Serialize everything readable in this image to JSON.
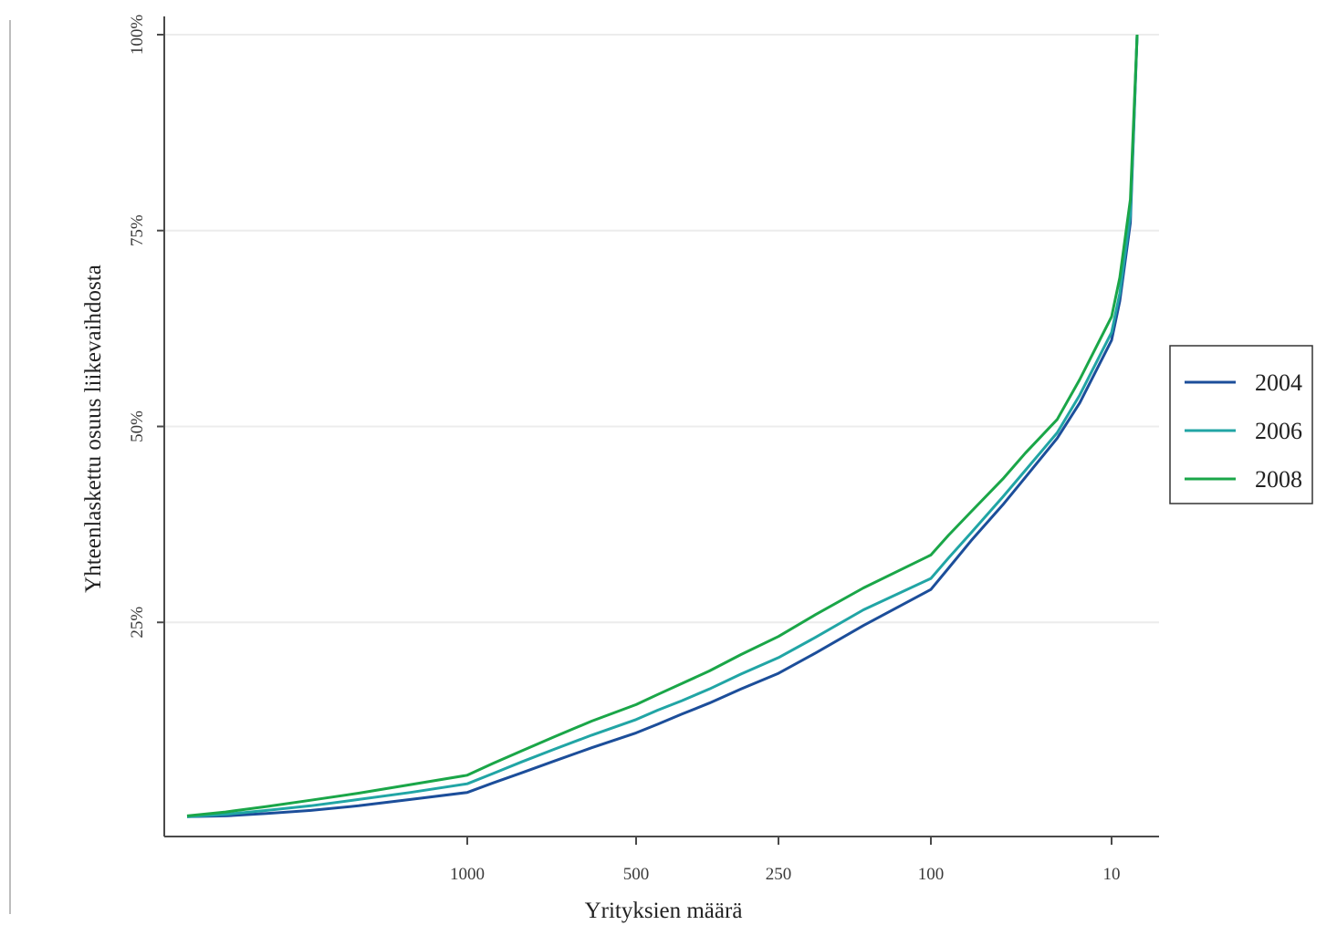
{
  "chart_data": {
    "type": "line",
    "xlabel": "Yrityksien määrä",
    "ylabel": "Yhteenlaskettu osuus liikevaihdosta",
    "x_tick_labels": [
      "1000",
      "500",
      "250",
      "100",
      "10"
    ],
    "y_tick_labels": [
      "25%",
      "50%",
      "75%",
      "100%"
    ],
    "y_ticks": [
      25,
      50,
      75,
      100
    ],
    "ylim": [
      0,
      100
    ],
    "x_axis": "number of firms, decreasing to the right",
    "grid": "horizontal",
    "legend_position": "right",
    "x": [
      1600,
      1500,
      1400,
      1300,
      1200,
      1100,
      1000,
      900,
      800,
      700,
      600,
      500,
      450,
      400,
      350,
      300,
      250,
      200,
      150,
      100,
      80,
      60,
      40,
      30,
      20,
      15,
      10,
      8,
      6,
      5
    ],
    "series": [
      {
        "name": "2004",
        "color": "#1c4e9a",
        "values": [
          0.2,
          0.3,
          0.6,
          1.0,
          1.6,
          2.4,
          3.3,
          4.5,
          5.8,
          7.3,
          9.0,
          10.9,
          12.0,
          13.3,
          14.7,
          16.5,
          18.5,
          21.1,
          24.6,
          29.2,
          31.9,
          35.4,
          40.0,
          43.5,
          48.5,
          53.0,
          61.0,
          66.0,
          76.0,
          100.0
        ]
      },
      {
        "name": "2006",
        "color": "#21a5a5",
        "values": [
          0.2,
          0.5,
          1.0,
          1.6,
          2.4,
          3.3,
          4.4,
          5.7,
          7.2,
          8.8,
          10.6,
          12.6,
          13.8,
          15.0,
          16.5,
          18.4,
          20.5,
          23.1,
          26.6,
          30.6,
          33.2,
          36.4,
          41.0,
          44.4,
          49.2,
          54.0,
          62.0,
          67.0,
          77.0,
          100.0
        ]
      },
      {
        "name": "2008",
        "color": "#1aa648",
        "values": [
          0.3,
          0.8,
          1.5,
          2.3,
          3.2,
          4.3,
          5.5,
          7.0,
          8.6,
          10.4,
          12.4,
          14.5,
          15.8,
          17.2,
          18.8,
          20.9,
          23.2,
          26.0,
          29.4,
          33.6,
          36.1,
          39.1,
          43.3,
          46.6,
          50.9,
          56.0,
          64.0,
          69.0,
          79.0,
          100.0
        ]
      }
    ]
  }
}
